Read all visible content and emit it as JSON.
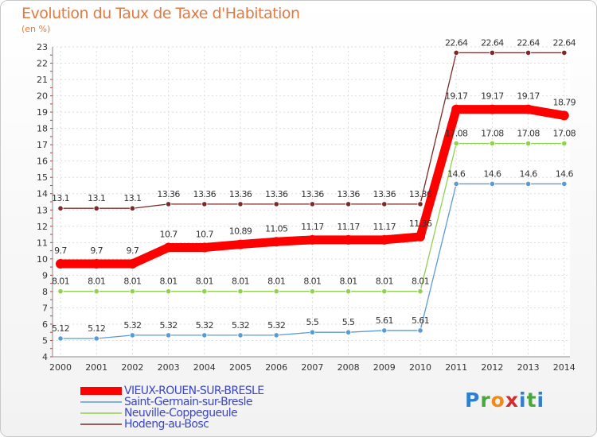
{
  "chart_data": {
    "type": "line",
    "title": "Evolution du Taux de Taxe d'Habitation",
    "ylabel": "(en %)",
    "xlabel": "",
    "ylim": [
      4,
      23
    ],
    "yticks": [
      "4",
      "5",
      "6",
      "7",
      "8",
      "9",
      "10",
      "11",
      "12",
      "13",
      "14",
      "15",
      "16",
      "17",
      "18",
      "19",
      "20",
      "21",
      "22",
      "23"
    ],
    "x": [
      "2000",
      "2001",
      "2002",
      "2003",
      "2004",
      "2005",
      "2006",
      "2007",
      "2008",
      "2009",
      "2010",
      "2011",
      "2012",
      "2013",
      "2014"
    ],
    "grid": true,
    "legend_position": "bottom-left",
    "series": [
      {
        "name": "VIEUX-ROUEN-SUR-BRESLE",
        "color": "#ff0000",
        "values": [
          9.7,
          9.7,
          9.7,
          10.7,
          10.7,
          10.89,
          11.05,
          11.17,
          11.17,
          11.17,
          11.36,
          19.17,
          19.17,
          19.17,
          18.79
        ],
        "labels": [
          "9.7",
          "9.7",
          "9.7",
          "10.7",
          "10.7",
          "10.89",
          "11.05",
          "11.17",
          "11.17",
          "11.17",
          "11.36",
          "19.17",
          "19.17",
          "19.17",
          "18.79"
        ]
      },
      {
        "name": "Saint-Germain-sur-Bresle",
        "color": "#5b9bd5",
        "values": [
          5.12,
          5.12,
          5.32,
          5.32,
          5.32,
          5.32,
          5.32,
          5.5,
          5.5,
          5.61,
          5.61,
          14.6,
          14.6,
          14.6,
          14.6
        ],
        "labels": [
          "5.12",
          "5.12",
          "5.32",
          "5.32",
          "5.32",
          "5.32",
          "5.32",
          "5.5",
          "5.5",
          "5.61",
          "5.61",
          "14.6",
          "14.6",
          "14.6",
          "14.6"
        ]
      },
      {
        "name": "Neuville-Coppegueule",
        "color": "#92d050",
        "values": [
          8.01,
          8.01,
          8.01,
          8.01,
          8.01,
          8.01,
          8.01,
          8.01,
          8.01,
          8.01,
          8.01,
          17.08,
          17.08,
          17.08,
          17.08
        ],
        "labels": [
          "8.01",
          "8.01",
          "8.01",
          "8.01",
          "8.01",
          "8.01",
          "8.01",
          "8.01",
          "8.01",
          "8.01",
          "8.01",
          "17.08",
          "17.08",
          "17.08",
          "17.08"
        ]
      },
      {
        "name": "Hodeng-au-Bosc",
        "color": "#7b2a2a",
        "values": [
          13.1,
          13.1,
          13.1,
          13.36,
          13.36,
          13.36,
          13.36,
          13.36,
          13.36,
          13.36,
          13.36,
          22.64,
          22.64,
          22.64,
          22.64
        ],
        "labels": [
          "13.1",
          "13.1",
          "13.1",
          "13.36",
          "13.36",
          "13.36",
          "13.36",
          "13.36",
          "13.36",
          "13.36",
          "13.36",
          "22.64",
          "22.64",
          "22.64",
          "22.64"
        ]
      }
    ]
  },
  "brand": {
    "p": "P",
    "r": "r",
    "o": "o",
    "x": "x",
    "i": "i",
    "t": "t",
    "i2": "i"
  }
}
